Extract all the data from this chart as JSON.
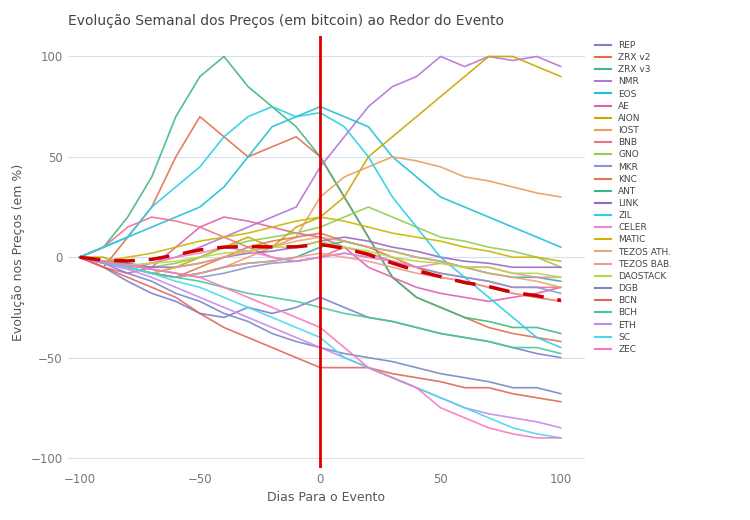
{
  "title": "Evolução Semanal dos Preços (em bitcoin) ao Redor do Evento",
  "xlabel": "Dias Para o Evento",
  "ylabel": "Evolução nos Preços (em %)",
  "xlim": [
    -105,
    110
  ],
  "ylim": [
    -105,
    110
  ],
  "x_ticks": [
    -100,
    -50,
    0,
    50,
    100
  ],
  "y_ticks": [
    -100,
    -50,
    0,
    50,
    100
  ],
  "background_color": "#ffffff",
  "plot_bg_color": "#ffffff",
  "series": {
    "REP": {
      "color": "#7b7fcc"
    },
    "ZRX v2": {
      "color": "#e07050"
    },
    "ZRX v3": {
      "color": "#40b880"
    },
    "NMR": {
      "color": "#b575d5"
    },
    "EOS": {
      "color": "#20c0d8"
    },
    "AE": {
      "color": "#e060b0"
    },
    "AION": {
      "color": "#c8a800"
    },
    "IOST": {
      "color": "#e8a060"
    },
    "BNB": {
      "color": "#f07090"
    },
    "GNO": {
      "color": "#90cc50"
    },
    "MKR": {
      "color": "#8898d0"
    },
    "KNC": {
      "color": "#e07850"
    },
    "ANT": {
      "color": "#30b888"
    },
    "LINK": {
      "color": "#9868c8"
    },
    "ZIL": {
      "color": "#28d0e8"
    },
    "CELER": {
      "color": "#f088c8"
    },
    "MATIC": {
      "color": "#c8b800"
    },
    "TEZOS ATH.": {
      "color": "#e8a870"
    },
    "TEZOS BAB.": {
      "color": "#f09898"
    },
    "DAOSTACK": {
      "color": "#b8d848"
    },
    "DGB": {
      "color": "#7888c8"
    },
    "BCN": {
      "color": "#e06858"
    },
    "BCH": {
      "color": "#48c898"
    },
    "ETH": {
      "color": "#c888e8"
    },
    "SC": {
      "color": "#48d8f0"
    },
    "ZEC": {
      "color": "#f878c0"
    }
  },
  "lw": 1.2,
  "mean_color": "#cc0000",
  "mean_lw": 2.5,
  "vline_color": "#dd0000",
  "vline_lw": 2.0
}
